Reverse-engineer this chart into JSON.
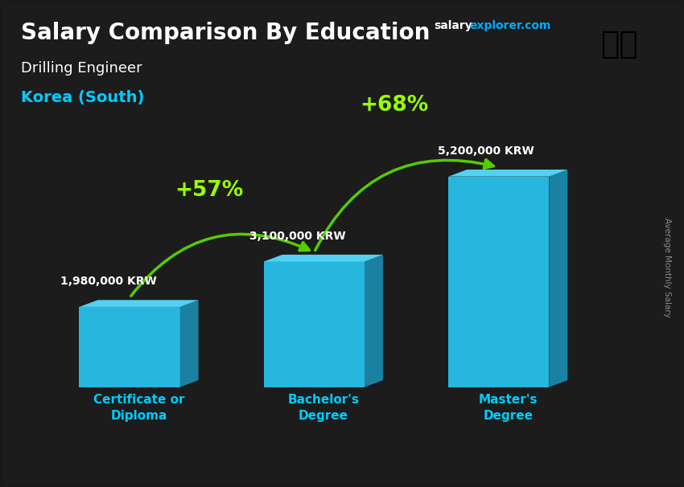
{
  "title": "Salary Comparison By Education",
  "subtitle_job": "Drilling Engineer",
  "subtitle_country": "Korea (South)",
  "ylabel": "Average Monthly Salary",
  "website_part1": "salary",
  "website_part2": "explorer.com",
  "categories": [
    "Certificate or\nDiploma",
    "Bachelor's\nDegree",
    "Master's\nDegree"
  ],
  "values": [
    1980000,
    3100000,
    5200000
  ],
  "value_labels": [
    "1,980,000 KRW",
    "3,100,000 KRW",
    "5,200,000 KRW"
  ],
  "pct_labels": [
    "+57%",
    "+68%"
  ],
  "bar_face_color": "#29c4f0",
  "bar_right_color": "#1a8ab0",
  "bar_top_color": "#55ddff",
  "bg_color": "#2a2a2a",
  "title_color": "#ffffff",
  "subtitle_job_color": "#ffffff",
  "subtitle_country_color": "#00ccff",
  "value_label_color": "#ffffff",
  "pct_color": "#99ff00",
  "arrow_color": "#55cc00",
  "category_label_color": "#00ccff",
  "ylabel_color": "#888888",
  "website1_color": "#ffffff",
  "website2_color": "#00aaff",
  "title_fontsize": 20,
  "subtitle_job_fontsize": 13,
  "subtitle_country_fontsize": 14,
  "value_label_fontsize": 10,
  "pct_fontsize": 19,
  "category_fontsize": 11
}
